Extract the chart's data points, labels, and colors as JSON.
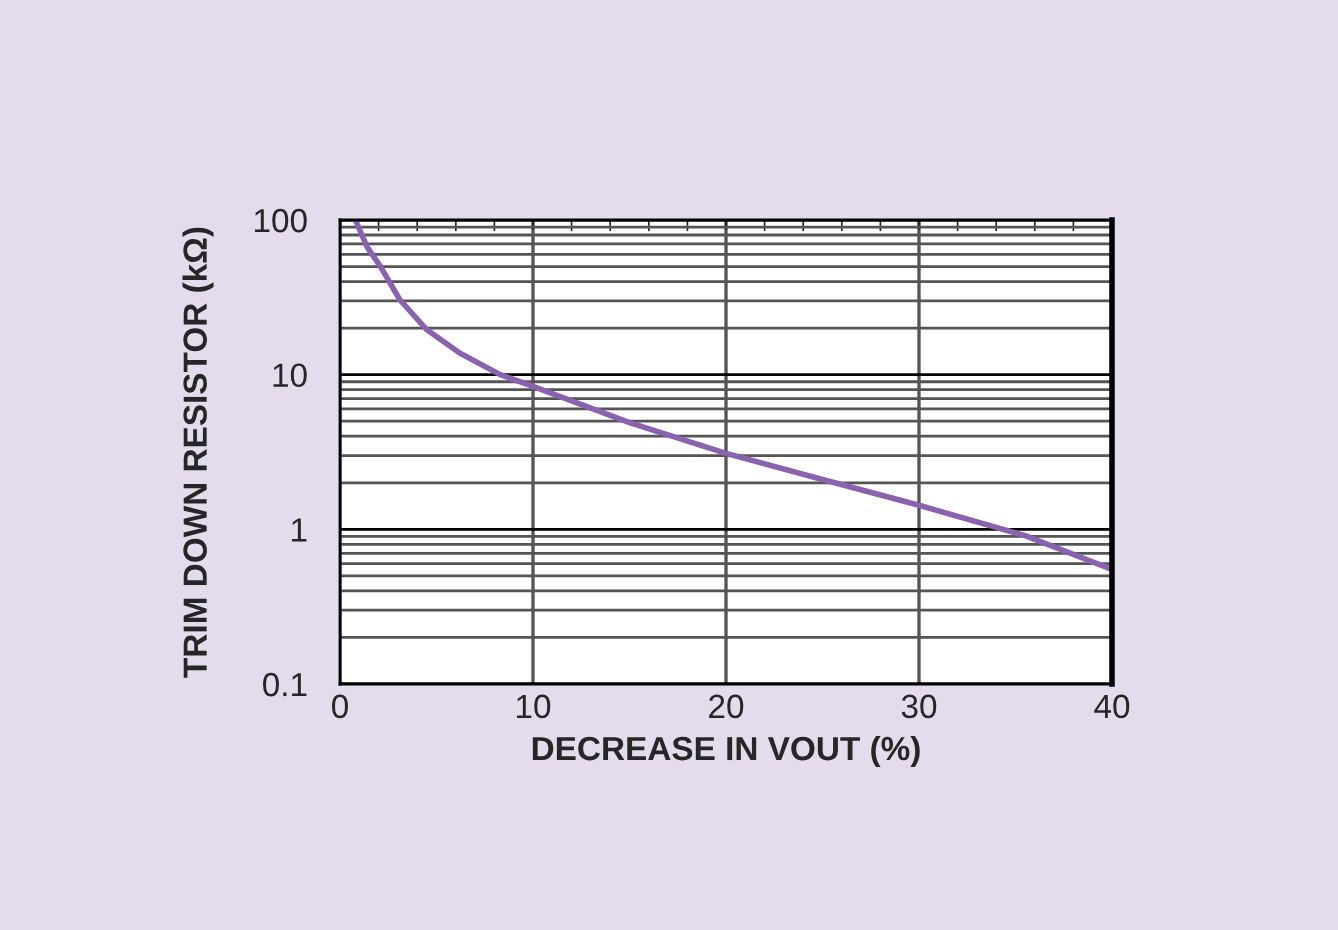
{
  "chart_data": {
    "type": "line",
    "xlabel": "DECREASE IN VOUT (%)",
    "ylabel": "TRIM DOWN RESISTOR (kΩ)",
    "log": "y",
    "xlim": [
      0,
      40
    ],
    "xticks": [
      0,
      10,
      20,
      30,
      40
    ],
    "ylim": [
      0.1,
      100
    ],
    "yticks": [
      0.1,
      1,
      10,
      100
    ],
    "grid": true,
    "marker": "none",
    "line_style": "solid",
    "series": [
      {
        "color": "#8a62b0",
        "x": [
          0.8,
          1.4,
          2.1,
          3.1,
          4.5,
          6.2,
          8.3,
          10,
          15,
          20,
          25,
          30,
          35.5,
          40
        ],
        "values": [
          100,
          67,
          50,
          30.5,
          19.5,
          13.8,
          10,
          8.4,
          4.9,
          3.1,
          2.1,
          1.43,
          0.91,
          0.55
        ]
      }
    ]
  }
}
